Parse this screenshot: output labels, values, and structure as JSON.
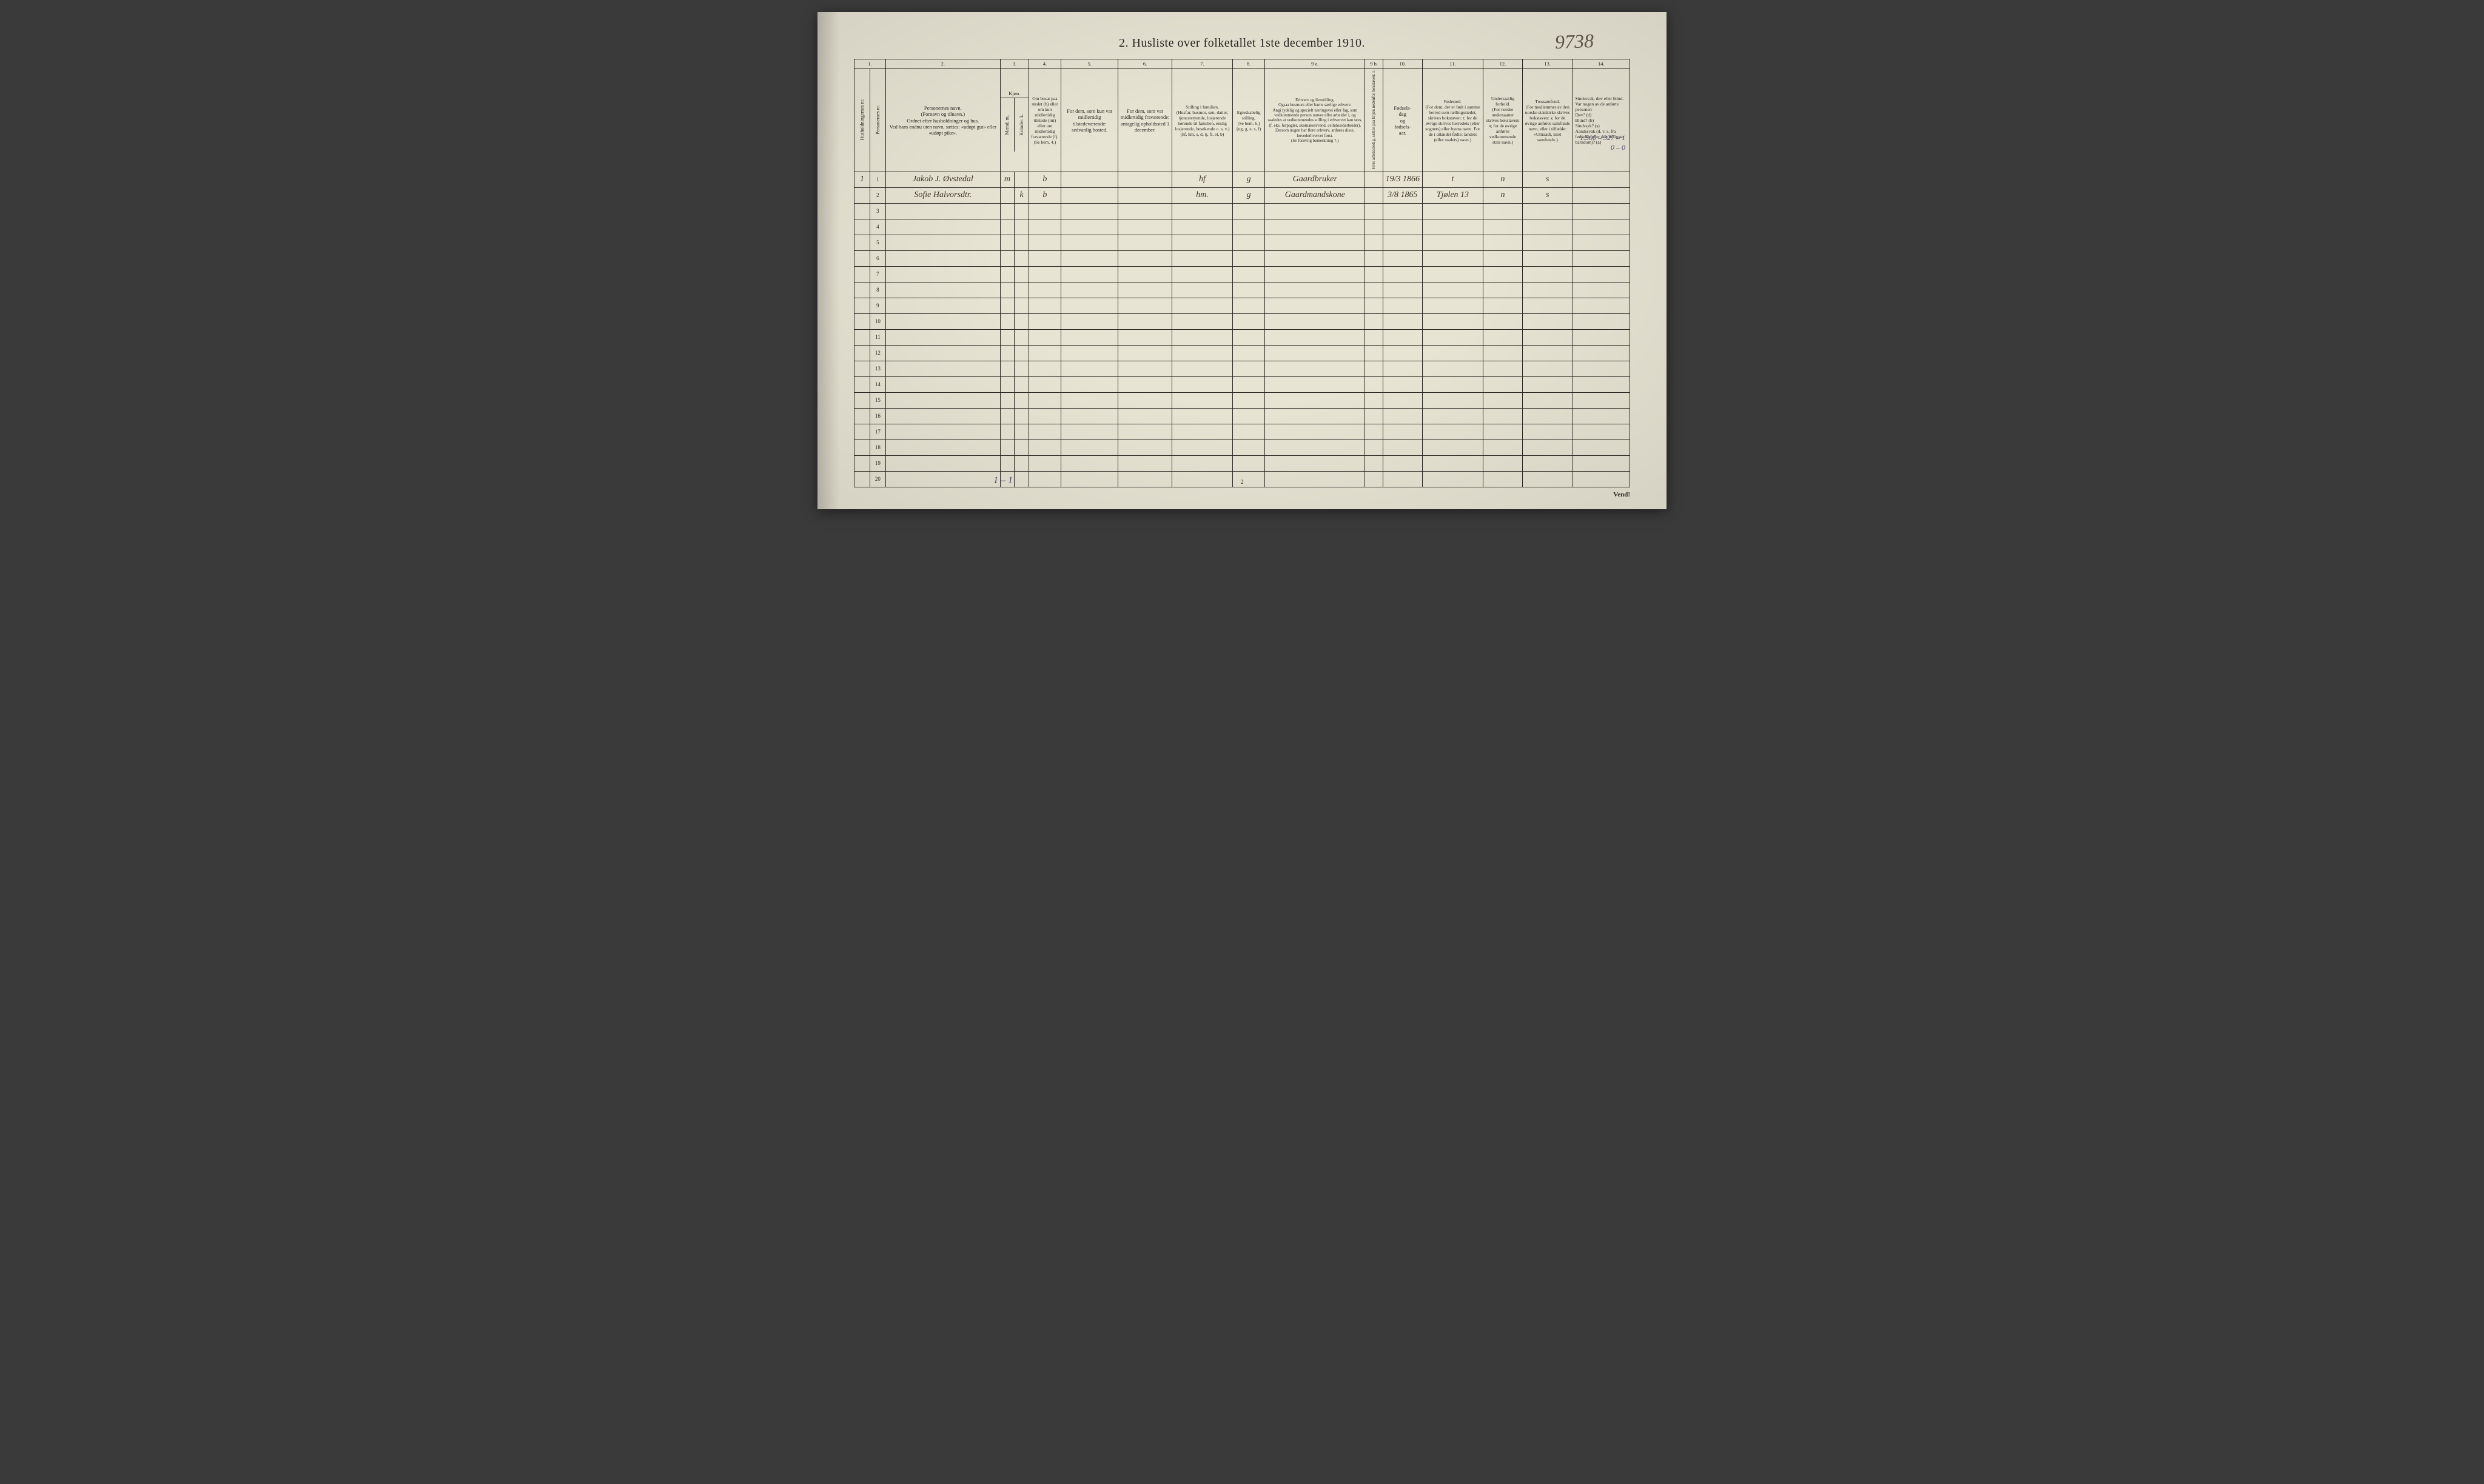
{
  "document": {
    "title": "2.  Husliste over folketallet 1ste december 1910.",
    "annotation_top_right": "9738",
    "footer_handwriting": "1 – 1",
    "page_number": "2",
    "turn_label": "Vend!",
    "margin_note_line1": "1.500 – 327 – 1",
    "margin_note_line2": "0 – 0",
    "background_color": "#e8e4d4",
    "ink_color": "#2a2822",
    "handwriting_color": "#3a3528"
  },
  "columns": {
    "widths_pct": [
      2.2,
      2.2,
      16,
      2,
      2,
      4.5,
      8,
      7.5,
      8.5,
      4.5,
      14,
      2.5,
      5.5,
      8.5,
      5.5,
      7,
      8
    ],
    "numbers": [
      "1.",
      "2.",
      "3.",
      "4.",
      "5.",
      "6.",
      "7.",
      "8.",
      "9 a.",
      "9 b.",
      "10.",
      "11.",
      "12.",
      "13.",
      "14."
    ],
    "headers": {
      "c1a": "Husholdningernes nr.",
      "c1b": "Personernes nr.",
      "c2": "Personernes navn.\n(Fornavn og tilnavn.)\nOrdnet efter husholdninger og hus.\nVed barn endnu uten navn, sættes: «udøpt gut» eller «udøpt pike».",
      "c3": "Kjøn.",
      "c3a": "Mænd.\nm.",
      "c3b": "Kvinder.\nk.",
      "c4": "Om bosat paa stedet (b) eller om kun midlertidig tilstede (mt) eller om midlertidig fraværende (f).\n(Se bem. 4.)",
      "c5": "For dem, som kun var midlertidig tilstedeværende:\nsedvanlig bosted.",
      "c6": "For dem, som var midlertidig fraværende:\nantagelig opholdssted 1 december.",
      "c7": "Stilling i familien.\n(Husfar, husmor, søn, datter, tjenestetyende, losjerende hørende til familien, enslig losjerende, besøkende o. s. v.)\n(hf, hm, s, d, tj, fl, el, b)",
      "c8": "Egteskabelig stilling.\n(Se bem. 6.)\n(ug, g, e, s, f)",
      "c9a": "Erhverv og livsstilling.\nOgsaa husmors eller barns særlige erhverv.\nAngi tydelig og specielt næringsvei eller fag, som vedkommende person utøver eller arbeider i, og saaledes at vedkommendes stilling i erhvervet kan sees, (f. eks. forpagter, skomakersvend, celluloseäarbeider). Dersom nogen har flere erhverv, anføres disse, hovederhvervet først.\n(Se forøvrig bemerkning 7.)",
      "c9b": "Hvis arbeidsledig, sættes paa linjen nedenfor bokstaven: l.",
      "c10": "Fødsels-\ndag\nog\nfødsels-\naar.",
      "c11": "Fødested.\n(For dem, der er født i samme herred som tællingsstedet, skrives bokstaven: t; for de øvrige skrives herredets (eller sognets) eller byens navn. For de i utlandet fødte: landets (eller stadets) navn.)",
      "c12": "Undersaatlig forhold.\n(For norske undersaatter skrives bokstaven: n; for de øvrige anføres vedkommende stats navn.)",
      "c13": "Trossamfund.\n(For medlemmer av den norske statskirke skrives bokstaven: s; for de øvrige anføres samfunds navn, eller i tilfælde: «Uttraadt, intet samfund».)",
      "c14": "Sindssvak, døv eller blind.\nVar nogen av de anførte personer:\nDøv?      (d)\nBlind?     (b)\nSindssyk? (s)\nAandssvak (d. v. s. fra fødselen eller den tidligste barndom)? (a)"
    }
  },
  "rows": [
    {
      "hh": "1",
      "pn": "1",
      "name": "Jakob J. Øvstedal",
      "sex_m": "m",
      "sex_k": "",
      "bosat": "b",
      "c5": "",
      "c6": "",
      "fam": "hf",
      "egte": "g",
      "erhverv": "Gaardbruker",
      "c9b": "",
      "fodsel": "19/3 1866",
      "fodested": "t",
      "under": "n",
      "tros": "s",
      "c14": ""
    },
    {
      "hh": "",
      "pn": "2",
      "name": "Sofie Halvorsdtr.",
      "sex_m": "",
      "sex_k": "k",
      "bosat": "b",
      "c5": "",
      "c6": "",
      "fam": "hm.",
      "egte": "g",
      "erhverv": "Gaardmandskone",
      "c9b": "",
      "fodsel": "3/8 1865",
      "fodested": "Tjølen 13",
      "under": "n",
      "tros": "s",
      "c14": ""
    },
    {
      "hh": "",
      "pn": "3"
    },
    {
      "hh": "",
      "pn": "4"
    },
    {
      "hh": "",
      "pn": "5"
    },
    {
      "hh": "",
      "pn": "6"
    },
    {
      "hh": "",
      "pn": "7"
    },
    {
      "hh": "",
      "pn": "8"
    },
    {
      "hh": "",
      "pn": "9"
    },
    {
      "hh": "",
      "pn": "10"
    },
    {
      "hh": "",
      "pn": "11"
    },
    {
      "hh": "",
      "pn": "12"
    },
    {
      "hh": "",
      "pn": "13"
    },
    {
      "hh": "",
      "pn": "14"
    },
    {
      "hh": "",
      "pn": "15"
    },
    {
      "hh": "",
      "pn": "16"
    },
    {
      "hh": "",
      "pn": "17"
    },
    {
      "hh": "",
      "pn": "18"
    },
    {
      "hh": "",
      "pn": "19"
    },
    {
      "hh": "",
      "pn": "20"
    }
  ]
}
